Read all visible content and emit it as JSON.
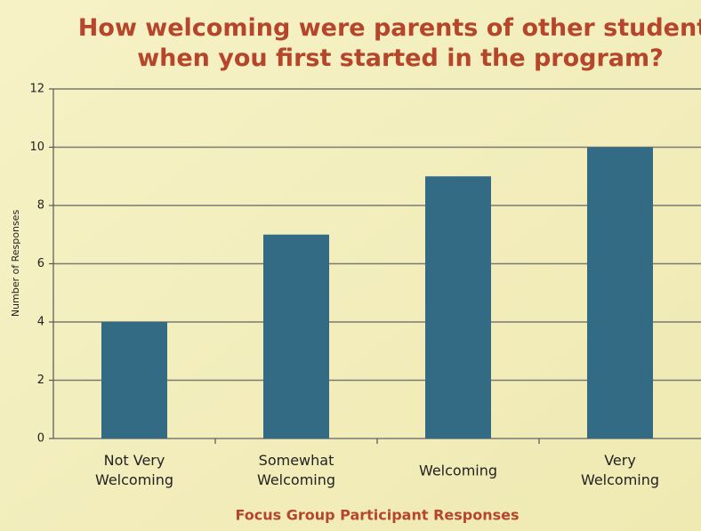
{
  "chart_data": {
    "type": "bar",
    "title": "How welcoming were parents of other students\nwhen you first started in the program?",
    "x_label": "Focus Group Participant Responses",
    "y_label": "Number of Responses",
    "categories": [
      "Not Very\nWelcoming",
      "Somewhat\nWelcoming",
      "Welcoming",
      "Very\nWelcoming"
    ],
    "values": [
      4,
      7,
      9,
      10
    ],
    "color": "#336b85",
    "ylim": [
      0,
      12
    ],
    "yticks": [
      0,
      2,
      4,
      6,
      8,
      10,
      12
    ],
    "grid": true
  }
}
